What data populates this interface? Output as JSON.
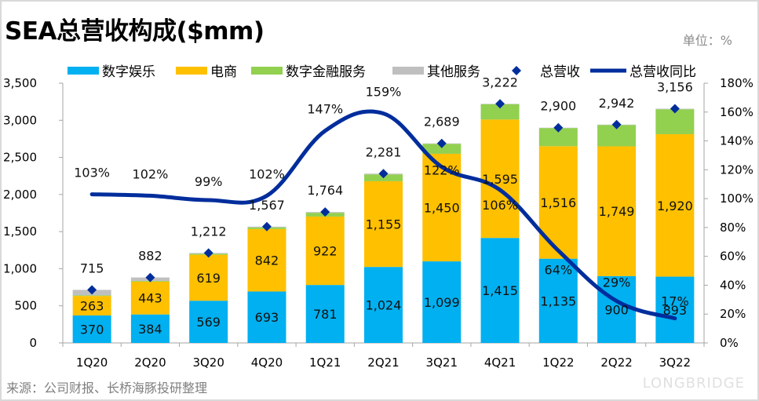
{
  "header": {
    "title": "SEA总营收构成($mm)",
    "unit_label": "单位：%"
  },
  "footer": {
    "source": "来源：公司财报、长桥海豚投研整理",
    "watermark": "LONGBRIDGE"
  },
  "colors": {
    "entertainment": "#00b0f0",
    "ecommerce": "#ffc000",
    "fintech": "#92d050",
    "other": "#bfbfbf",
    "total_marker": "#002d9c",
    "yoy_line": "#002d9c"
  },
  "chart_data": {
    "type": "bar",
    "title": "SEA总营收构成($mm)",
    "xlabel": "",
    "ylabel": "",
    "categories": [
      "1Q20",
      "2Q20",
      "3Q20",
      "4Q20",
      "1Q21",
      "2Q21",
      "3Q21",
      "4Q21",
      "1Q22",
      "2Q22",
      "3Q22"
    ],
    "series": [
      {
        "name": "数字娱乐",
        "kind": "stacked-bar",
        "values": [
          370,
          384,
          569,
          693,
          781,
          1024,
          1099,
          1415,
          1135,
          900,
          893
        ],
        "show_labels": true
      },
      {
        "name": "电商",
        "kind": "stacked-bar",
        "values": [
          263,
          443,
          619,
          842,
          922,
          1155,
          1450,
          1595,
          1516,
          1749,
          1920
        ],
        "show_labels": true
      },
      {
        "name": "数字金融服务",
        "kind": "stacked-bar",
        "values": [
          9,
          9,
          14,
          22,
          51,
          92,
          134,
          207,
          244,
          288,
          336
        ],
        "show_labels": false
      },
      {
        "name": "其他服务",
        "kind": "stacked-bar",
        "values": [
          73,
          46,
          10,
          10,
          10,
          10,
          6,
          5,
          5,
          5,
          7
        ],
        "show_labels": false
      },
      {
        "name": "总营收",
        "kind": "marker",
        "values": [
          715,
          882,
          1212,
          1567,
          1764,
          2281,
          2689,
          3222,
          2900,
          2942,
          3156
        ],
        "labels": [
          "715",
          "882",
          "1,212",
          "1,567",
          "1,764",
          "2,281",
          "2,689",
          "3,222",
          "2,900",
          "2,942",
          "3,156"
        ]
      },
      {
        "name": "总营收同比",
        "kind": "line",
        "axis": "right",
        "values": [
          103,
          102,
          99,
          102,
          147,
          159,
          122,
          106,
          64,
          29,
          17
        ],
        "labels": [
          "103%",
          "102%",
          "99%",
          "102%",
          "147%",
          "159%",
          "122%",
          "106%",
          "64%",
          "29%",
          "17%"
        ]
      }
    ],
    "legend": [
      "数字娱乐",
      "电商",
      "数字金融服务",
      "其他服务",
      "总营收",
      "总营收同比"
    ],
    "legend_position": "top",
    "ylim": [
      0,
      3500
    ],
    "yticks": [
      "0",
      "500",
      "1,000",
      "1,500",
      "2,000",
      "2,500",
      "3,000",
      "3,500"
    ],
    "y2lim": [
      0,
      180
    ],
    "y2ticks": [
      "0%",
      "20%",
      "40%",
      "60%",
      "80%",
      "100%",
      "120%",
      "140%",
      "160%",
      "180%"
    ],
    "grid": false
  }
}
